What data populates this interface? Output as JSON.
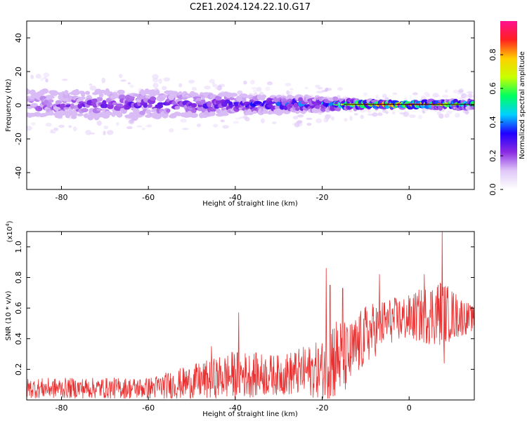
{
  "figure_title": "C2E1.2024.124.22.10.G17",
  "chart_data": [
    {
      "id": "spectrogram",
      "type": "heatmap",
      "title": "C2E1.2024.124.22.10.G17",
      "xlabel": "Height of straight line (km)",
      "ylabel": "Frequency (Hz)",
      "xlim": [
        -88,
        15
      ],
      "ylim": [
        -50,
        50
      ],
      "xticks": [
        "-80",
        "-60",
        "-40",
        "-20",
        "0"
      ],
      "xtick_values": [
        -80,
        -60,
        -40,
        -20,
        0
      ],
      "yticks": [
        "-40",
        "-20",
        "0",
        "20",
        "40"
      ],
      "ytick_values": [
        -40,
        -20,
        0,
        20,
        40
      ],
      "colorbar": {
        "label": "Normalized spectral amplitude",
        "range": [
          0.0,
          1.0
        ],
        "ticks": [
          "0.0",
          "0.2",
          "0.4",
          "0.6",
          "0.8"
        ],
        "tick_values": [
          0.0,
          0.2,
          0.4,
          0.6,
          0.8
        ],
        "colormap": [
          "#ffffff",
          "#e0c8f8",
          "#8a2be2",
          "#2000ff",
          "#00d0ff",
          "#00ff60",
          "#c8ff00",
          "#ffd000",
          "#ff2020",
          "#ff1090"
        ]
      },
      "band": {
        "center_hz": 0.5,
        "description_points": [
          {
            "x": -88,
            "amplitude": 0.22,
            "spread_hz": 8
          },
          {
            "x": -60,
            "amplitude": 0.26,
            "spread_hz": 8
          },
          {
            "x": -40,
            "amplitude": 0.3,
            "spread_hz": 6
          },
          {
            "x": -20,
            "amplitude": 0.4,
            "spread_hz": 4
          },
          {
            "x": -10,
            "amplitude": 0.75,
            "spread_hz": 2
          },
          {
            "x": 0,
            "amplitude": 0.9,
            "spread_hz": 1.5
          },
          {
            "x": 15,
            "amplitude": 0.55,
            "spread_hz": 2.5
          }
        ],
        "line_from_x": -15,
        "line_to_x": 15
      }
    },
    {
      "id": "snr",
      "type": "line",
      "xlabel": "Height of straight line (km)",
      "ylabel": "SNR (10 * v/v)",
      "y_multiplier": "(x10",
      "y_multiplier_exp": "4",
      "y_multiplier_close": ")",
      "xlim": [
        -88,
        15
      ],
      "ylim": [
        0,
        1.1
      ],
      "xticks": [
        "-80",
        "-60",
        "-40",
        "-20",
        "0"
      ],
      "xtick_values": [
        -80,
        -60,
        -40,
        -20,
        0
      ],
      "yticks": [
        "0.2",
        "0.4",
        "0.6",
        "0.8",
        "1.0"
      ],
      "ytick_values": [
        0.2,
        0.4,
        0.6,
        0.8,
        1.0
      ],
      "color": "#e83030",
      "envelope": [
        {
          "x": -88,
          "base": 0.07,
          "amp": 0.13
        },
        {
          "x": -60,
          "base": 0.07,
          "amp": 0.14
        },
        {
          "x": -46,
          "base": 0.12,
          "amp": 0.26
        },
        {
          "x": -40,
          "base": 0.15,
          "amp": 0.32
        },
        {
          "x": -30,
          "base": 0.15,
          "amp": 0.26
        },
        {
          "x": -20,
          "base": 0.18,
          "amp": 0.38
        },
        {
          "x": -18,
          "base": 0.25,
          "amp": 0.6
        },
        {
          "x": -14,
          "base": 0.25,
          "amp": 0.45
        },
        {
          "x": -10,
          "base": 0.4,
          "amp": 0.4
        },
        {
          "x": -5,
          "base": 0.5,
          "amp": 0.3
        },
        {
          "x": 0,
          "base": 0.52,
          "amp": 0.3
        },
        {
          "x": 7,
          "base": 0.55,
          "amp": 0.45
        },
        {
          "x": 15,
          "base": 0.52,
          "amp": 0.15
        }
      ],
      "peaks": [
        {
          "x": -45.5,
          "y": 0.35
        },
        {
          "x": -39.2,
          "y": 0.57
        },
        {
          "x": -19.1,
          "y": 0.86
        },
        {
          "x": -18.2,
          "y": 0.75
        },
        {
          "x": -15.3,
          "y": 0.73
        },
        {
          "x": -6.8,
          "y": 0.82
        },
        {
          "x": 3.5,
          "y": 0.82
        },
        {
          "x": 7.6,
          "y": 1.1
        },
        {
          "x": 8.1,
          "y": 0.24
        }
      ]
    }
  ]
}
